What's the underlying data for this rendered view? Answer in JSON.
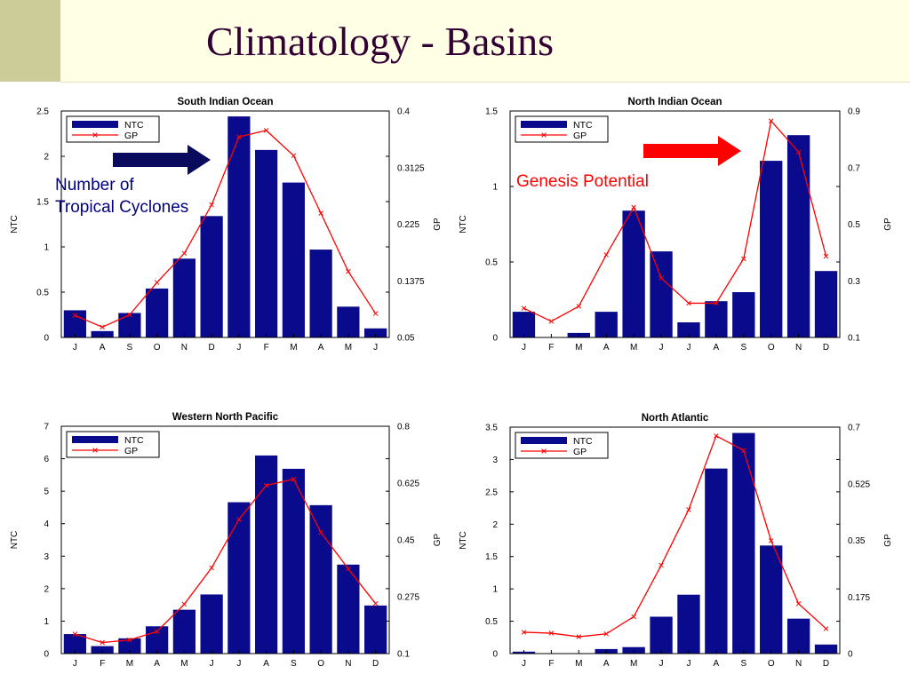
{
  "slide": {
    "title": "Climatology - Basins"
  },
  "annotations": {
    "ntc_callout": [
      "Number of",
      "Tropical Cyclones"
    ],
    "gp_callout": "Genesis Potential",
    "ntc_arrow_color": "#0b0b5e",
    "gp_arrow_color": "#ff0000"
  },
  "colors": {
    "bar": "#0a0a8c",
    "gp_line": "#ff0000",
    "header_bg": "#ffffe6",
    "header_block": "#cccc99",
    "title": "#330033"
  },
  "chart_data": [
    {
      "type": "bar+line",
      "title": "South Indian Ocean",
      "categories": [
        "J",
        "A",
        "S",
        "O",
        "N",
        "D",
        "J",
        "F",
        "M",
        "A",
        "M",
        "J"
      ],
      "ylabel": "NTC",
      "y2label": "GP",
      "ylim": [
        0,
        2.5
      ],
      "yticks": [
        "0",
        "0.5",
        "1",
        "1.5",
        "2",
        "2.5"
      ],
      "y2lim": [
        0.05,
        0.4
      ],
      "y2ticks": [
        "0.05",
        "0.1375",
        "0.225",
        "0.3125",
        "0.4"
      ],
      "legend": [
        "NTC",
        "GP"
      ],
      "legend_position": "top-left",
      "series": [
        {
          "name": "NTC",
          "kind": "bar",
          "values": [
            0.3,
            0.07,
            0.27,
            0.54,
            0.87,
            1.34,
            2.44,
            2.07,
            1.71,
            0.97,
            0.34,
            0.1
          ]
        },
        {
          "name": "GP",
          "kind": "line",
          "values": [
            0.084,
            0.066,
            0.085,
            0.135,
            0.18,
            0.255,
            0.36,
            0.37,
            0.331,
            0.242,
            0.152,
            0.087
          ]
        }
      ]
    },
    {
      "type": "bar+line",
      "title": "North Indian Ocean",
      "categories": [
        "J",
        "F",
        "M",
        "A",
        "M",
        "J",
        "J",
        "A",
        "S",
        "O",
        "N",
        "D"
      ],
      "ylabel": "NTC",
      "y2label": "GP",
      "ylim": [
        0,
        1.5
      ],
      "yticks": [
        "0",
        "0.5",
        "1",
        "1.5"
      ],
      "y2lim": [
        0.1,
        0.9
      ],
      "y2ticks": [
        "0.1",
        "0.3",
        "0.5",
        "0.7",
        "0.9"
      ],
      "legend": [
        "NTC",
        "GP"
      ],
      "legend_position": "top-left",
      "series": [
        {
          "name": "NTC",
          "kind": "bar",
          "values": [
            0.17,
            0.0,
            0.03,
            0.17,
            0.84,
            0.57,
            0.1,
            0.24,
            0.3,
            1.17,
            1.34,
            0.44
          ]
        },
        {
          "name": "GP",
          "kind": "line",
          "values": [
            0.203,
            0.157,
            0.21,
            0.392,
            0.56,
            0.31,
            0.221,
            0.221,
            0.378,
            0.865,
            0.755,
            0.387
          ]
        }
      ]
    },
    {
      "type": "bar+line",
      "title": "Western North Pacific",
      "categories": [
        "J",
        "F",
        "M",
        "A",
        "M",
        "J",
        "J",
        "A",
        "S",
        "O",
        "N",
        "D"
      ],
      "ylabel": "NTC",
      "y2label": "GP",
      "ylim": [
        0,
        7
      ],
      "yticks": [
        "0",
        "1",
        "2",
        "3",
        "4",
        "5",
        "6",
        "7"
      ],
      "y2lim": [
        0.1,
        0.8
      ],
      "y2ticks": [
        "0.1",
        "0.275",
        "0.45",
        "0.625",
        "0.8"
      ],
      "legend": [
        "NTC",
        "GP"
      ],
      "legend_position": "top-left",
      "series": [
        {
          "name": "NTC",
          "kind": "bar",
          "values": [
            0.6,
            0.23,
            0.47,
            0.84,
            1.35,
            1.82,
            4.66,
            6.1,
            5.69,
            4.57,
            2.74,
            1.48
          ]
        },
        {
          "name": "GP",
          "kind": "line",
          "values": [
            0.16,
            0.134,
            0.142,
            0.168,
            0.252,
            0.364,
            0.513,
            0.618,
            0.637,
            0.473,
            0.361,
            0.254
          ]
        }
      ]
    },
    {
      "type": "bar+line",
      "title": "North Atlantic",
      "categories": [
        "J",
        "F",
        "M",
        "A",
        "M",
        "J",
        "J",
        "A",
        "S",
        "O",
        "N",
        "D"
      ],
      "ylabel": "NTC",
      "y2label": "GP",
      "ylim": [
        0,
        3.5
      ],
      "yticks": [
        "0",
        "0.5",
        "1",
        "1.5",
        "2",
        "2.5",
        "3",
        "3.5"
      ],
      "y2lim": [
        0,
        0.7
      ],
      "y2ticks": [
        "0",
        "0.175",
        "0.35",
        "0.525",
        "0.7"
      ],
      "legend": [
        "NTC",
        "GP"
      ],
      "legend_position": "top-left",
      "series": [
        {
          "name": "NTC",
          "kind": "bar",
          "values": [
            0.03,
            0.0,
            0.0,
            0.07,
            0.1,
            0.57,
            0.91,
            2.86,
            3.41,
            1.67,
            0.54,
            0.14
          ]
        },
        {
          "name": "GP",
          "kind": "line",
          "values": [
            0.066,
            0.063,
            0.052,
            0.061,
            0.114,
            0.273,
            0.445,
            0.673,
            0.628,
            0.349,
            0.154,
            0.077
          ]
        }
      ]
    }
  ]
}
